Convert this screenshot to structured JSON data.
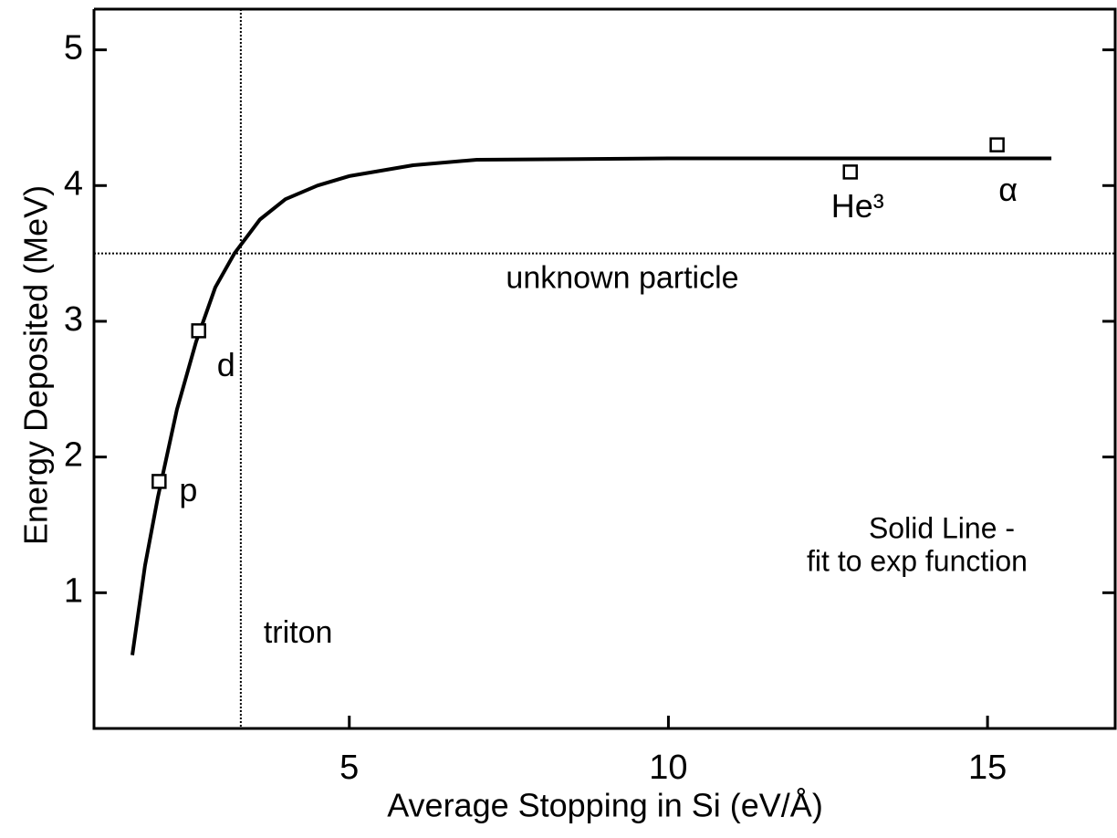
{
  "chart_data": {
    "type": "scatter",
    "xlabel": "Average Stopping in Si (eV/Å)",
    "ylabel": "Energy Deposited (MeV)",
    "xlim": [
      1,
      17
    ],
    "ylim": [
      0,
      5.3
    ],
    "xticks": [
      5,
      10,
      15
    ],
    "yticks": [
      1,
      2,
      3,
      4,
      5
    ],
    "color": "#000000",
    "points": [
      {
        "label": "p",
        "x": 2.02,
        "y": 1.82
      },
      {
        "label": "d",
        "x": 2.64,
        "y": 2.93
      },
      {
        "label": "He³",
        "x": 12.85,
        "y": 4.1
      },
      {
        "label": "α",
        "x": 15.15,
        "y": 4.3
      }
    ],
    "fit": {
      "x": [
        1.6,
        1.8,
        2.0,
        2.3,
        2.6,
        2.9,
        3.2,
        3.6,
        4.0,
        4.5,
        5.0,
        6.0,
        7.0,
        10.0,
        16.0
      ],
      "y": [
        0.54,
        1.2,
        1.7,
        2.35,
        2.85,
        3.25,
        3.5,
        3.75,
        3.9,
        4.0,
        4.07,
        4.15,
        4.19,
        4.2,
        4.2
      ]
    },
    "hlines": [
      {
        "value": 3.5,
        "label": "unknown particle"
      }
    ],
    "vlines": [
      {
        "value": 3.3,
        "label": "triton"
      }
    ],
    "annotations": [
      "Solid Line -",
      "fit to exp function"
    ]
  }
}
